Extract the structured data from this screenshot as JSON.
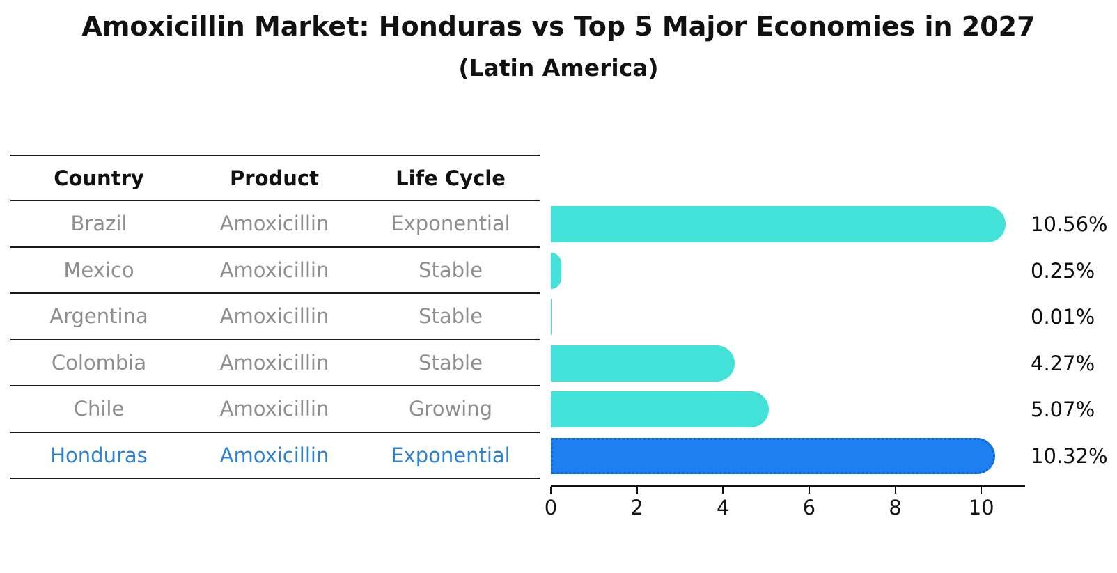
{
  "title": "Amoxicillin Market: Honduras vs Top 5 Major Economies in 2027",
  "subtitle": "(Latin America)",
  "table": {
    "columns": [
      "Country",
      "Product",
      "Life Cycle"
    ],
    "rows": [
      {
        "country": "Brazil",
        "product": "Amoxicillin",
        "life_cycle": "Exponential",
        "highlight": false
      },
      {
        "country": "Mexico",
        "product": "Amoxicillin",
        "life_cycle": "Stable",
        "highlight": false
      },
      {
        "country": "Argentina",
        "product": "Amoxicillin",
        "life_cycle": "Stable",
        "highlight": false
      },
      {
        "country": "Colombia",
        "product": "Amoxicillin",
        "life_cycle": "Stable",
        "highlight": false
      },
      {
        "country": "Chile",
        "product": "Amoxicillin",
        "life_cycle": "Growing",
        "highlight": false
      },
      {
        "country": "Honduras",
        "product": "Amoxicillin",
        "life_cycle": "Exponential",
        "highlight": true
      }
    ]
  },
  "chart_data": {
    "type": "bar",
    "orientation": "horizontal",
    "title": "Amoxicillin Market: Honduras vs Top 5 Major Economies in 2027 (Latin America)",
    "categories": [
      "Brazil",
      "Mexico",
      "Argentina",
      "Colombia",
      "Chile",
      "Honduras"
    ],
    "values": [
      10.56,
      0.25,
      0.01,
      4.27,
      5.07,
      10.32
    ],
    "value_labels": [
      "10.56%",
      "0.25%",
      "0.01%",
      "4.27%",
      "5.07%",
      "10.32%"
    ],
    "highlight_index": 5,
    "xlabel": "",
    "ylabel": "",
    "xlim": [
      0,
      11
    ],
    "xticks": [
      0,
      2,
      4,
      6,
      8,
      10
    ],
    "grid": false,
    "legend": false
  },
  "colors": {
    "bar": "#43E2D8",
    "highlight_bar": "#1E80F0",
    "highlight_border": "#1263D2",
    "highlight_text": "#2E80D0",
    "row_text": "#8E8E8E",
    "header_text": "#111111",
    "axis": "#111111"
  }
}
